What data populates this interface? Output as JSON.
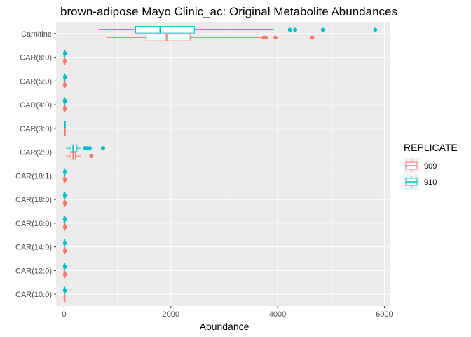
{
  "chart_data": {
    "type": "boxplot",
    "orientation": "horizontal",
    "title": "brown-adipose Mayo Clinic_ac: Original Metabolite Abundances",
    "xlabel": "Abundance",
    "ylabel": "",
    "xlim": [
      -150,
      6100
    ],
    "x_ticks": [
      0,
      2000,
      4000,
      6000
    ],
    "x_tick_labels": [
      "0",
      "2000",
      "4000",
      "6000"
    ],
    "grid": true,
    "background": "#EBEBEB",
    "categories": [
      "Carnitine",
      "CAR(8:0)",
      "CAR(5:0)",
      "CAR(4:0)",
      "CAR(3:0)",
      "CAR(2:0)",
      "CAR(18:1)",
      "CAR(18:0)",
      "CAR(16:0)",
      "CAR(14:0)",
      "CAR(12:0)",
      "CAR(10:0)"
    ],
    "legend": {
      "title": "REPLICATE",
      "position": "right",
      "entries": [
        {
          "label": "909",
          "color": "#F8766D"
        },
        {
          "label": "910",
          "color": "#00BFC4"
        }
      ]
    },
    "series": [
      {
        "name": "909",
        "color": "#F8766D",
        "boxes": [
          {
            "category": "Carnitine",
            "whisker_low": 800,
            "q1": 1540,
            "median": 1920,
            "q3": 2360,
            "whisker_high": 3700,
            "outliers": [
              3740,
              3780,
              3960,
              4650
            ]
          },
          {
            "category": "CAR(8:0)",
            "whisker_low": 0,
            "q1": 2,
            "median": 4,
            "q3": 6,
            "whisker_high": 12,
            "outliers": [
              16,
              22
            ]
          },
          {
            "category": "CAR(5:0)",
            "whisker_low": 0,
            "q1": 2,
            "median": 4,
            "q3": 6,
            "whisker_high": 12,
            "outliers": [
              16,
              20
            ]
          },
          {
            "category": "CAR(4:0)",
            "whisker_low": 0,
            "q1": 2,
            "median": 4,
            "q3": 6,
            "whisker_high": 12,
            "outliers": [
              16,
              20
            ]
          },
          {
            "category": "CAR(3:0)",
            "whisker_low": 5,
            "q1": 8,
            "median": 10,
            "q3": 12,
            "whisker_high": 18,
            "outliers": []
          },
          {
            "category": "CAR(2:0)",
            "whisker_low": 40,
            "q1": 130,
            "median": 170,
            "q3": 210,
            "whisker_high": 310,
            "outliers": [
              510
            ]
          },
          {
            "category": "CAR(18:1)",
            "whisker_low": 0,
            "q1": 2,
            "median": 4,
            "q3": 6,
            "whisker_high": 12,
            "outliers": [
              16,
              20
            ]
          },
          {
            "category": "CAR(18:0)",
            "whisker_low": 0,
            "q1": 2,
            "median": 4,
            "q3": 6,
            "whisker_high": 12,
            "outliers": [
              16,
              20
            ]
          },
          {
            "category": "CAR(16:0)",
            "whisker_low": 0,
            "q1": 2,
            "median": 4,
            "q3": 6,
            "whisker_high": 12,
            "outliers": [
              16,
              20
            ]
          },
          {
            "category": "CAR(14:0)",
            "whisker_low": 0,
            "q1": 2,
            "median": 4,
            "q3": 6,
            "whisker_high": 12,
            "outliers": [
              16,
              20
            ]
          },
          {
            "category": "CAR(12:0)",
            "whisker_low": 0,
            "q1": 2,
            "median": 4,
            "q3": 6,
            "whisker_high": 12,
            "outliers": [
              16,
              20
            ]
          },
          {
            "category": "CAR(10:0)",
            "whisker_low": 0,
            "q1": 2,
            "median": 4,
            "q3": 6,
            "whisker_high": 12,
            "outliers": []
          }
        ]
      },
      {
        "name": "910",
        "color": "#00BFC4",
        "boxes": [
          {
            "category": "Carnitine",
            "whisker_low": 650,
            "q1": 1340,
            "median": 1800,
            "q3": 2440,
            "whisker_high": 3930,
            "outliers": [
              4230,
              4330,
              4850,
              5830
            ]
          },
          {
            "category": "CAR(8:0)",
            "whisker_low": 0,
            "q1": 2,
            "median": 4,
            "q3": 6,
            "whisker_high": 12,
            "outliers": [
              16,
              20
            ]
          },
          {
            "category": "CAR(5:0)",
            "whisker_low": 0,
            "q1": 2,
            "median": 4,
            "q3": 6,
            "whisker_high": 12,
            "outliers": [
              16,
              20
            ]
          },
          {
            "category": "CAR(4:0)",
            "whisker_low": 0,
            "q1": 2,
            "median": 4,
            "q3": 6,
            "whisker_high": 12,
            "outliers": [
              16,
              20
            ]
          },
          {
            "category": "CAR(3:0)",
            "whisker_low": 5,
            "q1": 8,
            "median": 10,
            "q3": 12,
            "whisker_high": 18,
            "outliers": []
          },
          {
            "category": "CAR(2:0)",
            "whisker_low": 40,
            "q1": 130,
            "median": 170,
            "q3": 240,
            "whisker_high": 320,
            "outliers": [
              390,
              420,
              480,
              730
            ]
          },
          {
            "category": "CAR(18:1)",
            "whisker_low": 0,
            "q1": 2,
            "median": 4,
            "q3": 6,
            "whisker_high": 12,
            "outliers": [
              16,
              20
            ]
          },
          {
            "category": "CAR(18:0)",
            "whisker_low": 0,
            "q1": 2,
            "median": 4,
            "q3": 6,
            "whisker_high": 12,
            "outliers": [
              16,
              20
            ]
          },
          {
            "category": "CAR(16:0)",
            "whisker_low": 0,
            "q1": 2,
            "median": 4,
            "q3": 6,
            "whisker_high": 12,
            "outliers": [
              16,
              20
            ]
          },
          {
            "category": "CAR(14:0)",
            "whisker_low": 0,
            "q1": 2,
            "median": 4,
            "q3": 6,
            "whisker_high": 12,
            "outliers": [
              16,
              20
            ]
          },
          {
            "category": "CAR(12:0)",
            "whisker_low": 0,
            "q1": 2,
            "median": 4,
            "q3": 6,
            "whisker_high": 12,
            "outliers": [
              16,
              20
            ]
          },
          {
            "category": "CAR(10:0)",
            "whisker_low": 0,
            "q1": 2,
            "median": 4,
            "q3": 6,
            "whisker_high": 12,
            "outliers": [
              16,
              20
            ]
          }
        ]
      }
    ]
  }
}
